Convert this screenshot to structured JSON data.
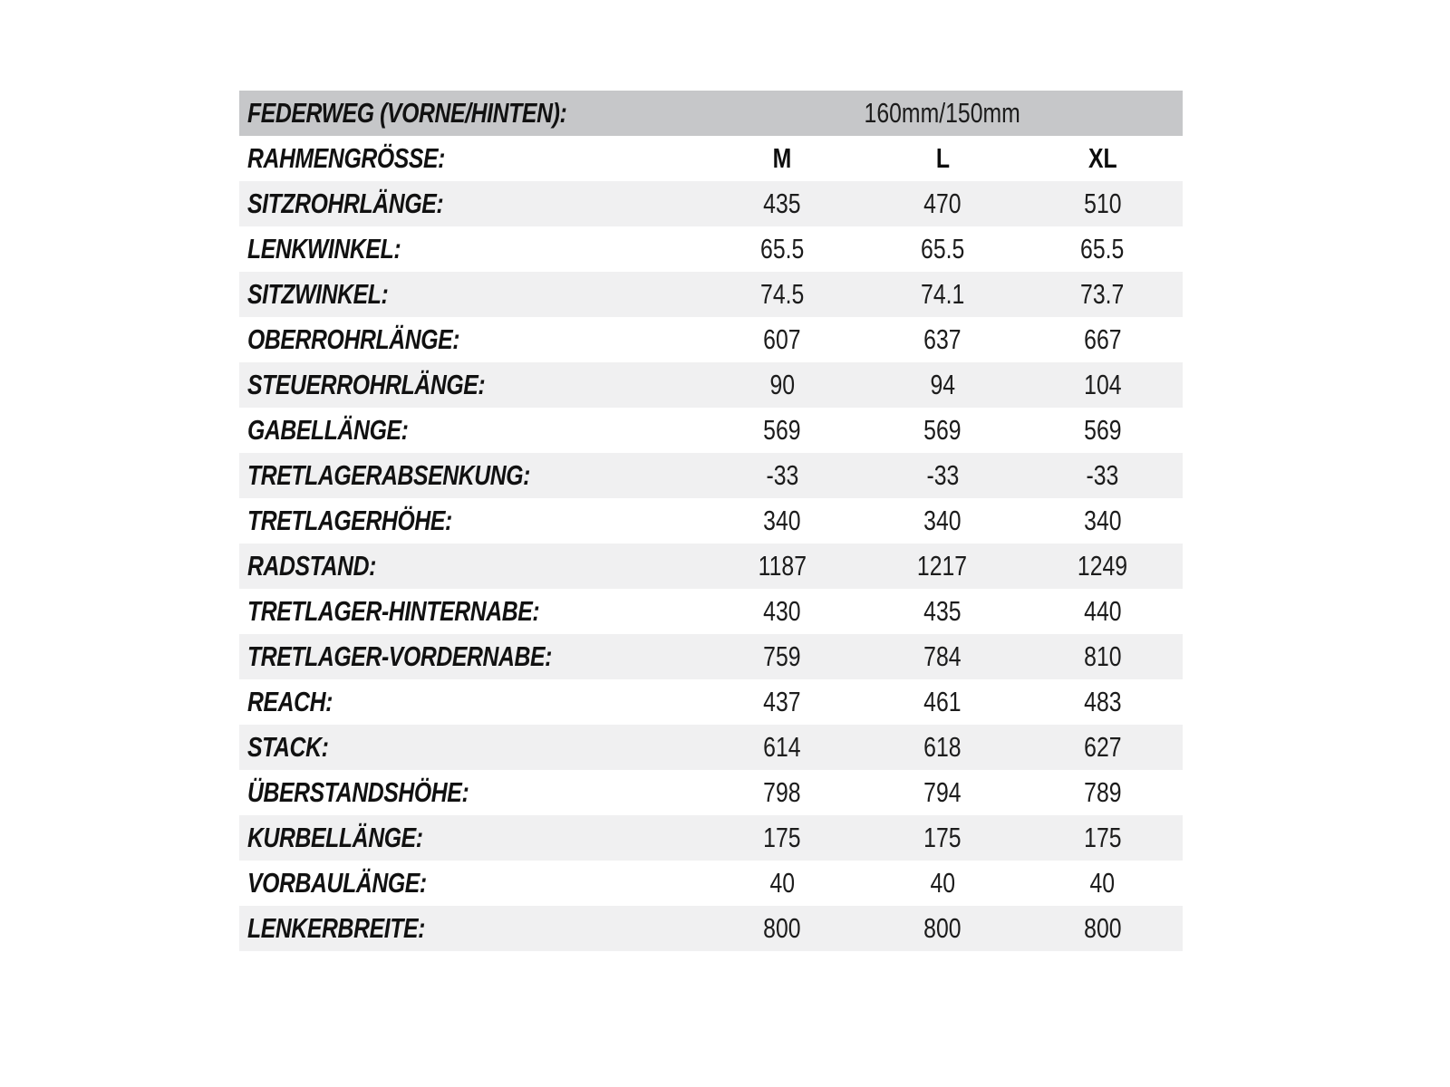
{
  "table": {
    "travel_row": {
      "label": "FEDERWEG (VORNE/HINTEN):",
      "value": "160mm/150mm"
    },
    "size_row": {
      "label": "RAHMENGRÖSSE:",
      "sizes": [
        "M",
        "L",
        "XL"
      ]
    },
    "rows": [
      {
        "label": "SITZROHRLÄNGE:",
        "values": [
          "435",
          "470",
          "510"
        ]
      },
      {
        "label": "LENKWINKEL:",
        "values": [
          "65.5",
          "65.5",
          "65.5"
        ]
      },
      {
        "label": "SITZWINKEL:",
        "values": [
          "74.5",
          "74.1",
          "73.7"
        ]
      },
      {
        "label": "OBERROHRLÄNGE:",
        "values": [
          "607",
          "637",
          "667"
        ]
      },
      {
        "label": "STEUERROHRLÄNGE:",
        "values": [
          "90",
          "94",
          "104"
        ]
      },
      {
        "label": "GABELLÄNGE:",
        "values": [
          "569",
          "569",
          "569"
        ]
      },
      {
        "label": "TRETLAGERABSENKUNG:",
        "values": [
          "-33",
          "-33",
          "-33"
        ]
      },
      {
        "label": "TRETLAGERHÖHE:",
        "values": [
          "340",
          "340",
          "340"
        ]
      },
      {
        "label": "RADSTAND:",
        "values": [
          "1187",
          "1217",
          "1249"
        ]
      },
      {
        "label": "TRETLAGER-HINTERNABE:",
        "values": [
          "430",
          "435",
          "440"
        ]
      },
      {
        "label": "TRETLAGER-VORDERNABE:",
        "values": [
          "759",
          "784",
          "810"
        ]
      },
      {
        "label": "REACH:",
        "values": [
          "437",
          "461",
          "483"
        ]
      },
      {
        "label": "STACK:",
        "values": [
          "614",
          "618",
          "627"
        ]
      },
      {
        "label": "ÜBERSTANDSHÖHE:",
        "values": [
          "798",
          "794",
          "789"
        ]
      },
      {
        "label": "KURBELLÄNGE:",
        "values": [
          "175",
          "175",
          "175"
        ]
      },
      {
        "label": "VORBAULÄNGE:",
        "values": [
          "40",
          "40",
          "40"
        ]
      },
      {
        "label": "LENKERBREITE:",
        "values": [
          "800",
          "800",
          "800"
        ]
      }
    ],
    "colors": {
      "header_bg": "#c6c7c9",
      "stripe_bg": "#f0f0f1",
      "plain_bg": "#ffffff",
      "label_text": "#111111",
      "value_text": "#1c1c1c"
    }
  }
}
